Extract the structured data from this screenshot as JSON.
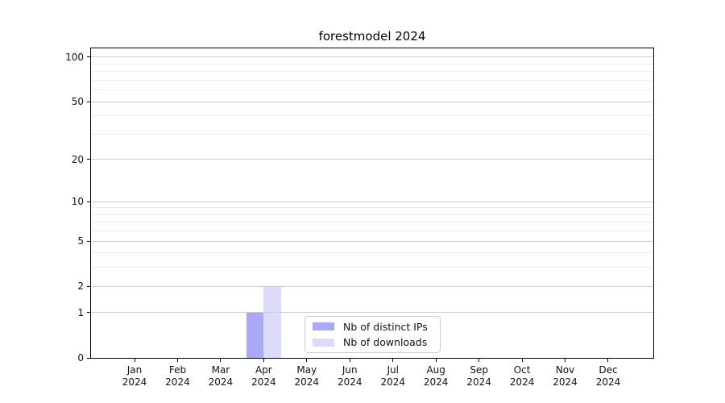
{
  "chart_data": {
    "type": "bar",
    "title": "forestmodel 2024",
    "categories": [
      "Jan 2024",
      "Feb 2024",
      "Mar 2024",
      "Apr 2024",
      "May 2024",
      "Jun 2024",
      "Jul 2024",
      "Aug 2024",
      "Sep 2024",
      "Oct 2024",
      "Nov 2024",
      "Dec 2024"
    ],
    "series": [
      {
        "key": "distinct-ips",
        "name": "Nb of distinct IPs",
        "color": "#a9a9f5",
        "values": [
          0,
          0,
          0,
          1,
          0,
          0,
          0,
          0,
          0,
          0,
          0,
          0
        ]
      },
      {
        "key": "downloads",
        "name": "Nb of downloads",
        "color": "#dcdcfa",
        "values": [
          0,
          0,
          0,
          2,
          0,
          0,
          0,
          0,
          0,
          0,
          0,
          0
        ]
      }
    ],
    "xlabel": "",
    "ylabel": "",
    "yscale": "log1p",
    "ylim": [
      0,
      115
    ],
    "ytick_values": [
      0,
      1,
      2,
      5,
      10,
      20,
      50,
      100
    ],
    "minor_grid_values": [
      3,
      4,
      6,
      7,
      8,
      9,
      30,
      40,
      60,
      70,
      80,
      90
    ],
    "grid": "horizontal",
    "legend_position": "lower-center"
  },
  "colors": {
    "distinct_ips_bar": "#a9a9f5",
    "downloads_bar": "#dcdcfa",
    "major_grid": "#cccccc",
    "minor_grid": "#ebebeb",
    "spine": "#000000",
    "text": "#111111",
    "legend_border": "#cccccc",
    "background": "#ffffff"
  }
}
